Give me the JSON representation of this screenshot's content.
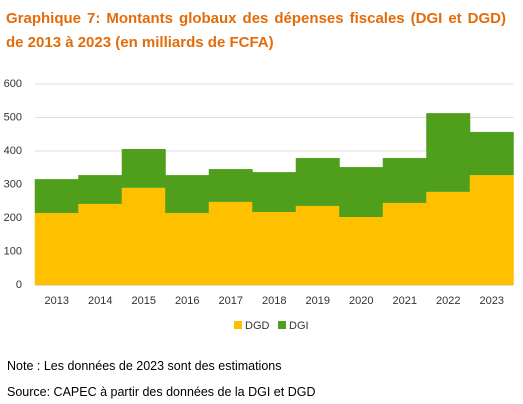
{
  "chart_data": {
    "type": "stacked_bar",
    "title": "Graphique 7: Montants globaux des dépenses fiscales (DGI et DGD) de 2013 à 2023 (en milliards de FCFA)",
    "categories": [
      "2013",
      "2014",
      "2015",
      "2016",
      "2017",
      "2018",
      "2019",
      "2020",
      "2021",
      "2022",
      "2023"
    ],
    "series": [
      {
        "name": "DGD",
        "color": "#ffc000",
        "values": [
          215,
          242,
          290,
          215,
          248,
          218,
          236,
          203,
          245,
          278,
          328
        ]
      },
      {
        "name": "DGI",
        "color": "#4f9e1c",
        "values": [
          101,
          86,
          116,
          113,
          98,
          119,
          143,
          149,
          134,
          235,
          129
        ]
      }
    ],
    "ylim": [
      0,
      600
    ],
    "yticks": [
      0,
      100,
      200,
      300,
      400,
      500,
      600
    ],
    "grid": true,
    "legend": "bottom",
    "notes": [
      "Note : Les données de 2023 sont des estimations",
      "Source: CAPEC à partir des données de la DGI et DGD"
    ]
  }
}
